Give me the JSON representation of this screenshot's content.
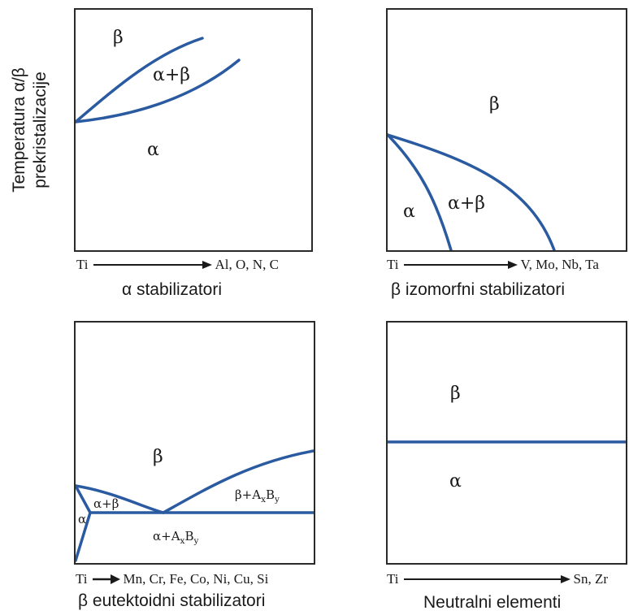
{
  "ylabel": {
    "line1": "Temperatura α/β",
    "line2": "prekristalizacije"
  },
  "panels": [
    {
      "caption": "α stabilizatori",
      "axis_from": "Ti",
      "axis_to": "Al, O, N, C",
      "phases": {
        "beta": "β",
        "alpha_beta": "α+β",
        "alpha": "α"
      }
    },
    {
      "caption": "β izomorfni stabilizatori",
      "axis_from": "Ti",
      "axis_to": "V, Mo, Nb, Ta",
      "phases": {
        "beta": "β",
        "alpha_beta": "α+β",
        "alpha": "α"
      }
    },
    {
      "caption": "β eutektoidni stabilizatori",
      "axis_from": "Ti",
      "axis_to": "Mn, Cr, Fe, Co, Ni, Cu, Si",
      "phases": {
        "beta": "β",
        "alpha_beta": "α+β",
        "alpha": "α",
        "beta_compound": {
          "base": "β+A",
          "sub1": "x",
          "mid": "B",
          "sub2": "y"
        },
        "alpha_compound": {
          "base": "α+A",
          "sub1": "x",
          "mid": "B",
          "sub2": "y"
        }
      }
    },
    {
      "caption": "Neutralni elementi",
      "axis_from": "Ti",
      "axis_to": "Sn, Zr",
      "phases": {
        "beta": "β",
        "alpha": "α"
      }
    }
  ],
  "colors": {
    "curve": "#2a5aa0",
    "frame": "#2a2a2a"
  }
}
